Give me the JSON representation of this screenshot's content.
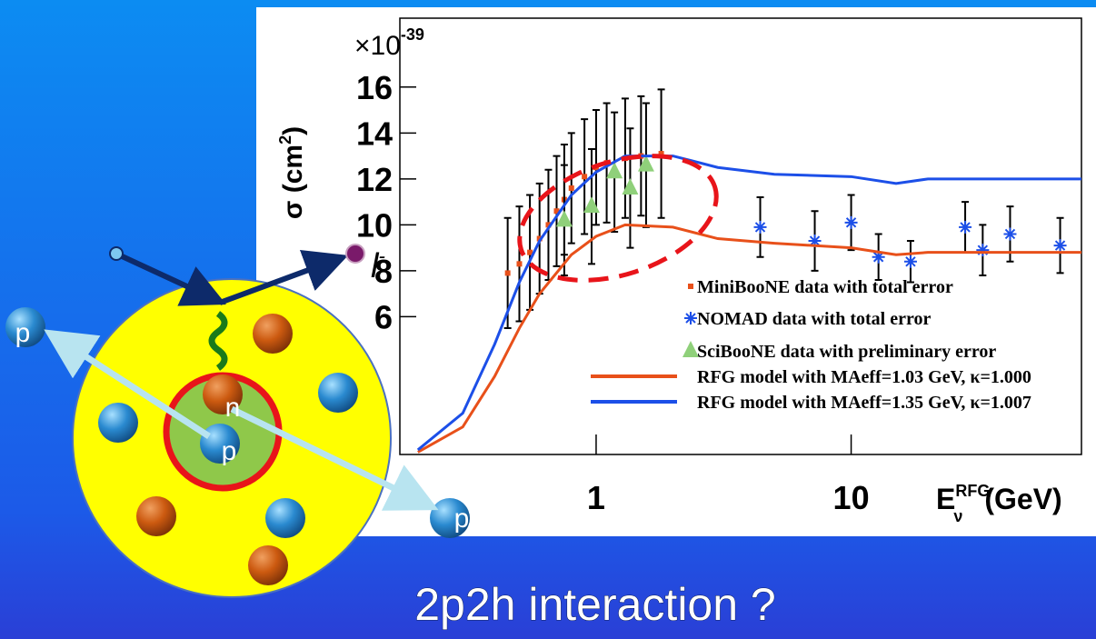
{
  "chart_data": {
    "type": "scatter",
    "multiplier_base": "×10",
    "multiplier_exp": "-39",
    "ylabel": "σ (cm",
    "ylabel_sup": "2",
    "ylabel_end": ")",
    "xlabel_symbol": "E",
    "xlabel_sub": "ν",
    "xlabel_sup": "RFG",
    "xlabel": "(GeV)",
    "xscale": "log",
    "xlim": [
      0.17,
      80
    ],
    "ylim": [
      0,
      19
    ],
    "xticks": [
      1,
      10
    ],
    "yticks": [
      6,
      8,
      10,
      12,
      14,
      16
    ],
    "series": [
      {
        "name": "MiniBooNE data with total error",
        "marker": "square",
        "color": "#e8501a",
        "x": [
          0.45,
          0.5,
          0.55,
          0.6,
          0.65,
          0.7,
          0.75,
          0.8,
          0.9,
          1.0,
          1.1,
          1.3,
          1.5,
          1.8
        ],
        "values": [
          7.9,
          8.3,
          8.8,
          9.4,
          10.0,
          10.6,
          11.1,
          11.6,
          12.1,
          12.5,
          12.7,
          12.9,
          13.0,
          13.1
        ],
        "errors": [
          2.4,
          2.5,
          2.5,
          2.4,
          2.4,
          2.4,
          2.4,
          2.4,
          2.5,
          2.5,
          2.6,
          2.6,
          2.6,
          2.8
        ]
      },
      {
        "name": "NOMAD data with total error",
        "marker": "star",
        "color": "#1c4fe8",
        "x": [
          4.4,
          7.2,
          10,
          12.8,
          17.1,
          28,
          32.8,
          42,
          66
        ],
        "values": [
          9.9,
          9.3,
          10.1,
          8.6,
          8.4,
          9.9,
          8.9,
          9.6,
          9.1
        ],
        "errors": [
          1.3,
          1.3,
          1.2,
          1.0,
          0.9,
          1.1,
          1.1,
          1.2,
          1.2
        ]
      },
      {
        "name": "SciBooNE data with preliminary error",
        "marker": "triangle",
        "color": "#8fd07a",
        "x": [
          0.75,
          0.96,
          1.18,
          1.36,
          1.57
        ],
        "values": [
          10.2,
          10.8,
          12.3,
          11.6,
          12.6
        ],
        "errors": [
          2.4,
          2.5,
          2.6,
          2.6,
          2.7
        ]
      },
      {
        "name": "RFG model with MAeff=1.03 GeV, κ=1.000",
        "marker": "line",
        "color": "#e8501a",
        "x": [
          0.2,
          0.3,
          0.4,
          0.5,
          0.6,
          0.8,
          1,
          1.3,
          2,
          3,
          5,
          10,
          15,
          20,
          80
        ],
        "values": [
          0.1,
          1.2,
          3.4,
          5.5,
          7.0,
          8.7,
          9.5,
          10.0,
          9.9,
          9.4,
          9.2,
          9.0,
          8.7,
          8.8,
          8.8
        ]
      },
      {
        "name": "RFG model with MAeff=1.35 GeV, κ=1.007",
        "marker": "line",
        "color": "#1c4fe8",
        "x": [
          0.2,
          0.3,
          0.4,
          0.5,
          0.6,
          0.8,
          1,
          1.3,
          2,
          3,
          5,
          10,
          15,
          20,
          80
        ],
        "values": [
          0.2,
          1.8,
          4.8,
          7.5,
          9.3,
          11.3,
          12.3,
          13.0,
          13.0,
          12.5,
          12.2,
          12.1,
          11.8,
          12.0,
          12.0
        ]
      }
    ]
  },
  "diagram": {
    "lepton": "l",
    "lepton_charge": "-",
    "proton_left": "p",
    "neutron": "n",
    "proton_center": "p",
    "proton_right": "p"
  },
  "caption": "2p2h interaction ?"
}
